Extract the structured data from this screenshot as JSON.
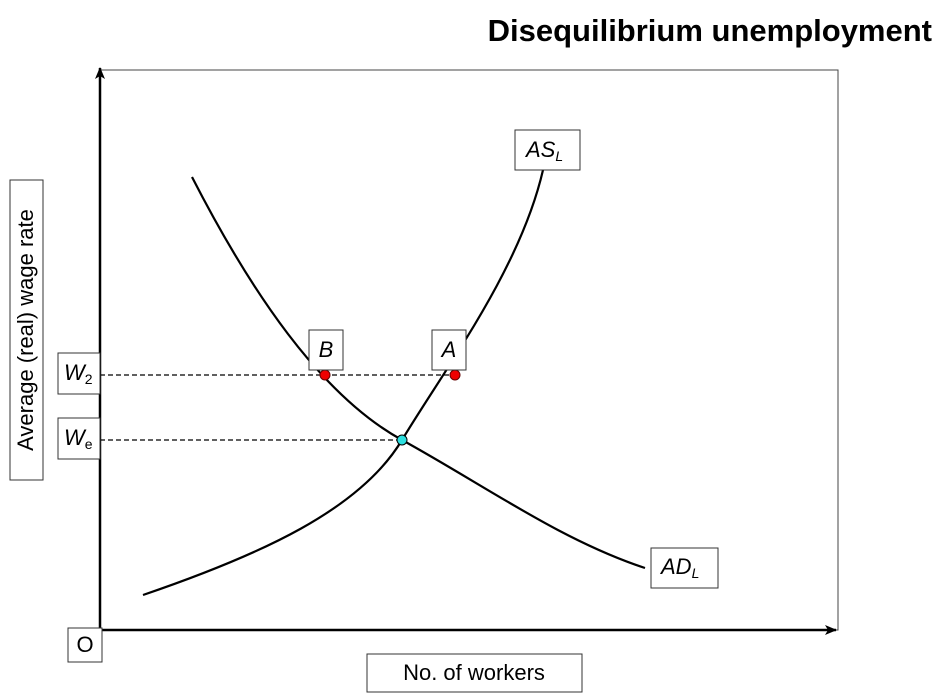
{
  "title": "Disequilibrium unemployment",
  "y_axis_label": "Average (real) wage rate",
  "x_axis_label": "No. of workers",
  "origin_label": "O",
  "curves": [
    {
      "main": "AS",
      "sub": "L"
    },
    {
      "main": "AD",
      "sub": "L"
    }
  ],
  "points": [
    "A",
    "B"
  ],
  "wage_labels": [
    {
      "main": "W",
      "sub": "2"
    },
    {
      "main": "W",
      "sub": "e"
    }
  ]
}
